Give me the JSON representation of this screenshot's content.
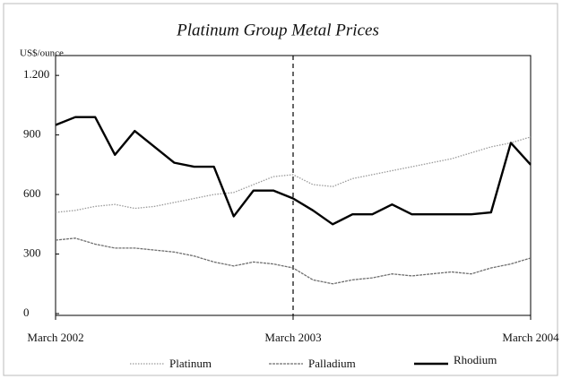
{
  "chart_data": {
    "type": "line",
    "title": "Platinum Group Metal Prices",
    "y_label": "US$/ounce",
    "x": [
      "2002-03",
      "2002-04",
      "2002-05",
      "2002-06",
      "2002-07",
      "2002-08",
      "2002-09",
      "2002-10",
      "2002-11",
      "2002-12",
      "2003-01",
      "2003-02",
      "2003-03",
      "2003-04",
      "2003-05",
      "2003-06",
      "2003-07",
      "2003-08",
      "2003-09",
      "2003-10",
      "2003-11",
      "2003-12",
      "2004-01",
      "2004-02",
      "2004-03"
    ],
    "series": [
      {
        "name": "Platinum",
        "color": "#9a9a9a",
        "style": "dotted",
        "values": [
          510,
          520,
          540,
          550,
          530,
          540,
          560,
          580,
          600,
          610,
          650,
          690,
          700,
          650,
          640,
          680,
          700,
          720,
          740,
          760,
          780,
          810,
          840,
          860,
          890
        ]
      },
      {
        "name": "Palladium",
        "color": "#6e6e6e",
        "style": "thin",
        "values": [
          370,
          380,
          350,
          330,
          330,
          320,
          310,
          290,
          260,
          240,
          260,
          250,
          230,
          170,
          150,
          170,
          180,
          200,
          190,
          200,
          210,
          200,
          230,
          250,
          280
        ]
      },
      {
        "name": "Rhodium",
        "color": "#000000",
        "style": "thick",
        "values": [
          950,
          990,
          990,
          800,
          920,
          840,
          760,
          740,
          740,
          490,
          620,
          620,
          580,
          520,
          450,
          500,
          500,
          550,
          500,
          500,
          500,
          500,
          510,
          860,
          750
        ]
      }
    ],
    "ylim": [
      0,
      1300
    ],
    "yticks": [
      0,
      300,
      600,
      900,
      {
        "value": 1200,
        "label": "1.200"
      }
    ],
    "xticks": [
      {
        "value": "2002-03",
        "label": "March 2002"
      },
      {
        "value": "2003-03",
        "label": "March 2003"
      },
      {
        "value": "2004-03",
        "label": "March 2004"
      }
    ],
    "vline": "2003-03",
    "legend": "bottom"
  }
}
